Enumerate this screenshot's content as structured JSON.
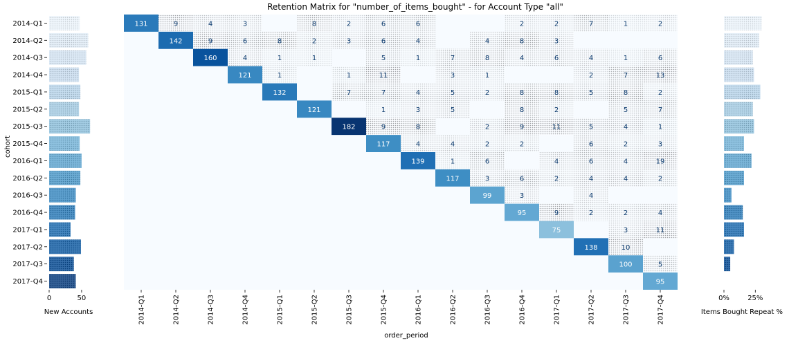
{
  "chart_data": {
    "type": "heatmap",
    "title": "Retention Matrix for \"number_of_items_bought\" - for Account Type \"all\"",
    "xlabel": "order_period",
    "ylabel": "cohort",
    "cohorts": [
      "2014-Q1",
      "2014-Q2",
      "2014-Q3",
      "2014-Q4",
      "2015-Q1",
      "2015-Q2",
      "2015-Q3",
      "2015-Q4",
      "2016-Q1",
      "2016-Q2",
      "2016-Q3",
      "2016-Q4",
      "2017-Q1",
      "2017-Q2",
      "2017-Q3",
      "2017-Q4"
    ],
    "order_periods": [
      "2014-Q1",
      "2014-Q2",
      "2014-Q3",
      "2014-Q4",
      "2015-Q1",
      "2015-Q2",
      "2015-Q3",
      "2015-Q4",
      "2016-Q1",
      "2016-Q2",
      "2016-Q3",
      "2016-Q4",
      "2017-Q1",
      "2017-Q2",
      "2017-Q3",
      "2017-Q4"
    ],
    "matrix": [
      [
        131,
        9,
        4,
        3,
        null,
        8,
        2,
        6,
        6,
        null,
        null,
        2,
        2,
        7,
        1,
        2
      ],
      [
        null,
        142,
        9,
        6,
        8,
        2,
        3,
        6,
        4,
        null,
        4,
        8,
        3,
        null,
        null,
        null
      ],
      [
        null,
        null,
        160,
        4,
        1,
        1,
        null,
        5,
        1,
        7,
        8,
        4,
        6,
        4,
        1,
        6
      ],
      [
        null,
        null,
        null,
        121,
        1,
        null,
        1,
        11,
        null,
        3,
        1,
        null,
        null,
        2,
        7,
        13
      ],
      [
        null,
        null,
        null,
        null,
        132,
        null,
        7,
        7,
        4,
        5,
        2,
        8,
        8,
        5,
        8,
        2
      ],
      [
        null,
        null,
        null,
        null,
        null,
        121,
        null,
        1,
        3,
        5,
        null,
        8,
        2,
        null,
        5,
        7
      ],
      [
        null,
        null,
        null,
        null,
        null,
        null,
        182,
        9,
        8,
        null,
        2,
        9,
        11,
        5,
        4,
        1
      ],
      [
        null,
        null,
        null,
        null,
        null,
        null,
        null,
        117,
        4,
        4,
        2,
        2,
        null,
        6,
        2,
        3
      ],
      [
        null,
        null,
        null,
        null,
        null,
        null,
        null,
        null,
        139,
        1,
        6,
        null,
        4,
        6,
        4,
        19
      ],
      [
        null,
        null,
        null,
        null,
        null,
        null,
        null,
        null,
        null,
        117,
        3,
        6,
        2,
        4,
        4,
        2
      ],
      [
        null,
        null,
        null,
        null,
        null,
        null,
        null,
        null,
        null,
        null,
        99,
        3,
        null,
        4,
        null,
        null
      ],
      [
        null,
        null,
        null,
        null,
        null,
        null,
        null,
        null,
        null,
        null,
        null,
        95,
        9,
        2,
        2,
        4
      ],
      [
        null,
        null,
        null,
        null,
        null,
        null,
        null,
        null,
        null,
        null,
        null,
        null,
        75,
        null,
        3,
        11
      ],
      [
        null,
        null,
        null,
        null,
        null,
        null,
        null,
        null,
        null,
        null,
        null,
        null,
        null,
        138,
        10,
        null
      ],
      [
        null,
        null,
        null,
        null,
        null,
        null,
        null,
        null,
        null,
        null,
        null,
        null,
        null,
        null,
        100,
        5
      ],
      [
        null,
        null,
        null,
        null,
        null,
        null,
        null,
        null,
        null,
        null,
        null,
        null,
        null,
        null,
        null,
        95
      ]
    ],
    "new_accounts": {
      "xlabel": "New Accounts",
      "ticks": [
        0,
        50
      ],
      "xlim": [
        0,
        65
      ],
      "values": [
        47,
        60,
        57,
        46,
        48,
        46,
        63,
        47,
        50,
        48,
        41,
        40,
        33,
        49,
        38,
        41
      ]
    },
    "repeat_pct": {
      "xlabel": "Items Bought Repeat %",
      "tick_labels": [
        "0%",
        "25%"
      ],
      "ticks": [
        0,
        25
      ],
      "xlim": [
        0,
        32
      ],
      "values": [
        30,
        28,
        23,
        24,
        29,
        23,
        24,
        16,
        22,
        16,
        6,
        15,
        16,
        8,
        5,
        null
      ]
    }
  }
}
